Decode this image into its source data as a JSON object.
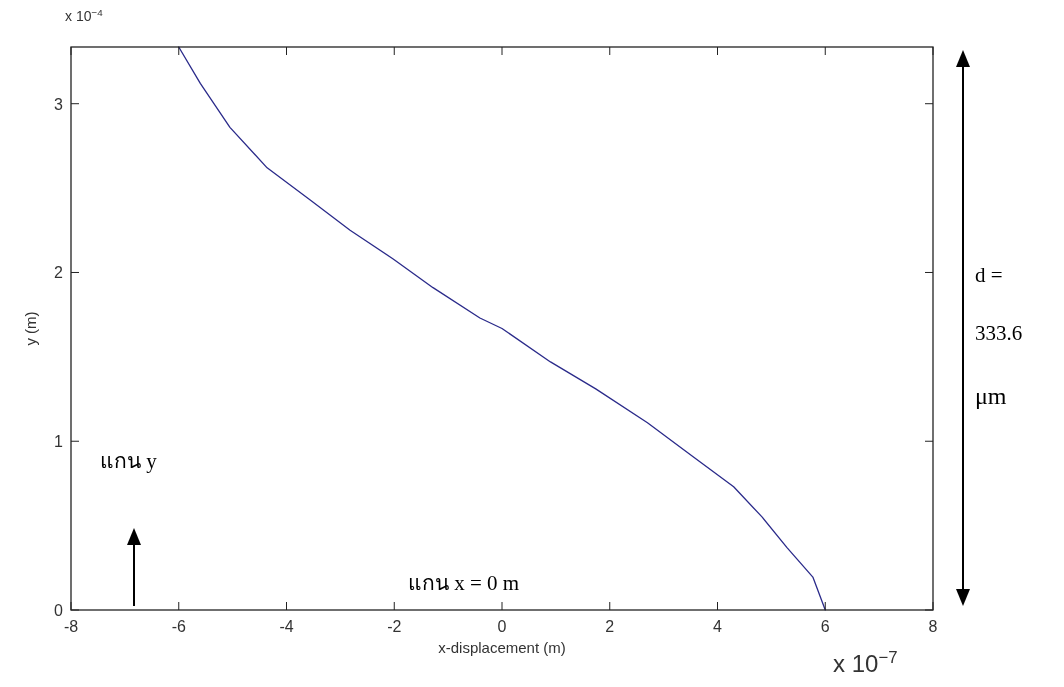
{
  "chart_data": {
    "type": "line",
    "xlabel": "x-displacement (m)",
    "ylabel": "y (m)",
    "series": [
      {
        "color": "#2a2a8a",
        "x": [
          -6.0,
          -5.6,
          -5.05,
          -4.36,
          -3.56,
          -2.82,
          -2.02,
          -1.28,
          -0.41,
          0,
          0.9,
          1.74,
          2.7,
          3.56,
          4.3,
          4.83,
          5.29,
          5.77,
          6.0
        ],
        "values": [
          3.336,
          3.12,
          2.86,
          2.62,
          2.43,
          2.25,
          2.08,
          1.91,
          1.73,
          1.668,
          1.47,
          1.31,
          1.11,
          0.905,
          0.73,
          0.55,
          0.37,
          0.195,
          0
        ]
      }
    ],
    "xlim": [
      -8,
      8
    ],
    "xticks": [
      -8,
      -6,
      -4,
      -2,
      0,
      2,
      4,
      6,
      8
    ],
    "ylim": [
      0,
      3.336
    ],
    "yticks": [
      0,
      1,
      2,
      3
    ],
    "grid": false,
    "marker": "none",
    "line_style": "solid",
    "annotations": [
      "x 10$^{−4}$",
      "x 10$^{−7}$",
      "แกน y",
      "แกน x = 0 m",
      "d =",
      "333.6",
      "μm"
    ]
  }
}
